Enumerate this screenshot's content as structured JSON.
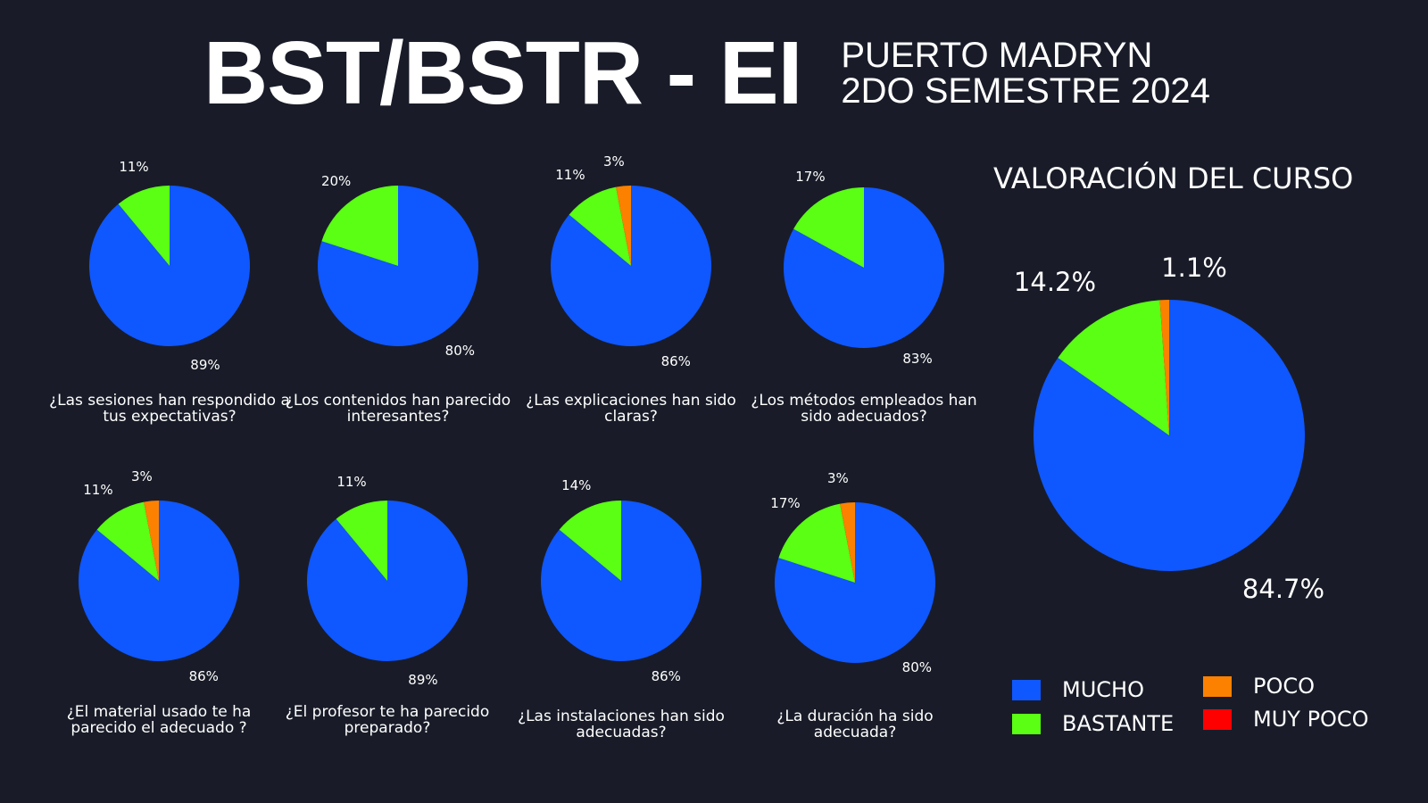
{
  "header": {
    "title": "BST/BSTR - EI",
    "subtitle_line1": "PUERTO MADRYN",
    "subtitle_line2": "2DO SEMESTRE 2024"
  },
  "colors": {
    "MUCHO": "#0f57ff",
    "BASTANTE": "#5aff14",
    "POCO": "#fc8100",
    "MUY POCO": "#ff0000"
  },
  "legend": {
    "items": [
      "MUCHO",
      "BASTANTE",
      "POCO",
      "MUY POCO"
    ]
  },
  "chart_data": [
    {
      "type": "pie",
      "title": "¿Las sesiones han respondido a tus expectativas?",
      "categories": [
        "MUCHO",
        "BASTANTE"
      ],
      "values": [
        89,
        11
      ],
      "labels": [
        "89%",
        "11%"
      ]
    },
    {
      "type": "pie",
      "title": "¿Los contenidos han parecido interesantes?",
      "categories": [
        "MUCHO",
        "BASTANTE"
      ],
      "values": [
        80,
        20
      ],
      "labels": [
        "80%",
        "20%"
      ]
    },
    {
      "type": "pie",
      "title": "¿Las explicaciones han sido claras?",
      "categories": [
        "MUCHO",
        "BASTANTE",
        "POCO"
      ],
      "values": [
        86,
        11,
        3
      ],
      "labels": [
        "86%",
        "11%",
        "3%"
      ]
    },
    {
      "type": "pie",
      "title": "¿Los métodos empleados han sido adecuados?",
      "categories": [
        "MUCHO",
        "BASTANTE"
      ],
      "values": [
        83,
        17
      ],
      "labels": [
        "83%",
        "17%"
      ]
    },
    {
      "type": "pie",
      "title": "¿El material usado te ha parecido el adecuado ?",
      "categories": [
        "MUCHO",
        "BASTANTE",
        "POCO"
      ],
      "values": [
        86,
        11,
        3
      ],
      "labels": [
        "86%",
        "11%",
        "3%"
      ]
    },
    {
      "type": "pie",
      "title": "¿El profesor te ha parecido preparado?",
      "categories": [
        "MUCHO",
        "BASTANTE"
      ],
      "values": [
        89,
        11
      ],
      "labels": [
        "89%",
        "11%"
      ]
    },
    {
      "type": "pie",
      "title": "¿Las instalaciones han sido adecuadas?",
      "categories": [
        "MUCHO",
        "BASTANTE"
      ],
      "values": [
        86,
        14
      ],
      "labels": [
        "86%",
        "14%"
      ]
    },
    {
      "type": "pie",
      "title": "¿La duración ha sido adecuada?",
      "categories": [
        "MUCHO",
        "BASTANTE",
        "POCO"
      ],
      "values": [
        80,
        17,
        3
      ],
      "labels": [
        "80%",
        "17%",
        "3%"
      ]
    },
    {
      "type": "pie",
      "title": "VALORACIÓN DEL CURSO",
      "categories": [
        "MUCHO",
        "BASTANTE",
        "POCO"
      ],
      "values": [
        84.7,
        14.2,
        1.1
      ],
      "labels": [
        "84.7%",
        "14.2%",
        "1.1%"
      ]
    }
  ]
}
